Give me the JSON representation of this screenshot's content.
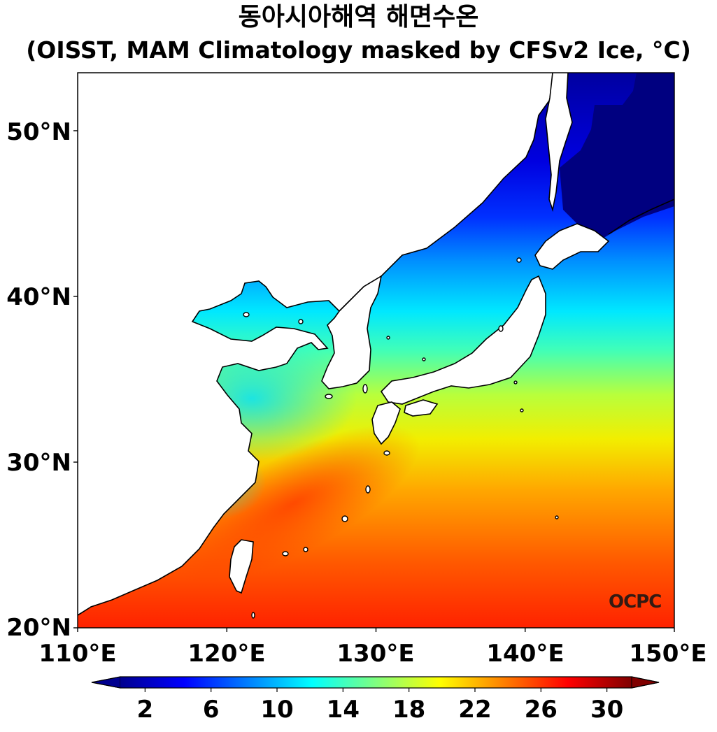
{
  "title": {
    "line1": "동아시아해역 해면수온",
    "line2": "(OISST, MAM Climatology masked by CFSv2 Ice, °C)"
  },
  "map": {
    "region": "East Asian Seas",
    "lon_range": [
      110,
      150
    ],
    "lat_range": [
      20,
      53.5
    ],
    "lat_ticks": [
      "50°N",
      "40°N",
      "30°N",
      "20°N"
    ],
    "lat_tick_values": [
      50,
      40,
      30,
      20
    ],
    "lon_ticks": [
      "110°E",
      "120°E",
      "130°E",
      "140°E",
      "150°E"
    ],
    "lon_tick_values": [
      110,
      120,
      130,
      140,
      150
    ],
    "watermark": "OCPC",
    "colors": {
      "ocean_warm": "#ff2a00",
      "ocean_mid": "#ffee00",
      "ocean_cool": "#00e8ff",
      "ocean_cold": "#0000c8",
      "ice_mask": "#000080",
      "land": "#ffffff",
      "coast": "#000000"
    }
  },
  "colorbar": {
    "tick_labels": [
      "2",
      "6",
      "10",
      "14",
      "18",
      "22",
      "26",
      "30"
    ],
    "tick_values": [
      2,
      6,
      10,
      14,
      18,
      22,
      26,
      30
    ],
    "min": 0.5,
    "max": 31.5,
    "extend": "both",
    "colormap": "jet",
    "unit": "°C"
  }
}
